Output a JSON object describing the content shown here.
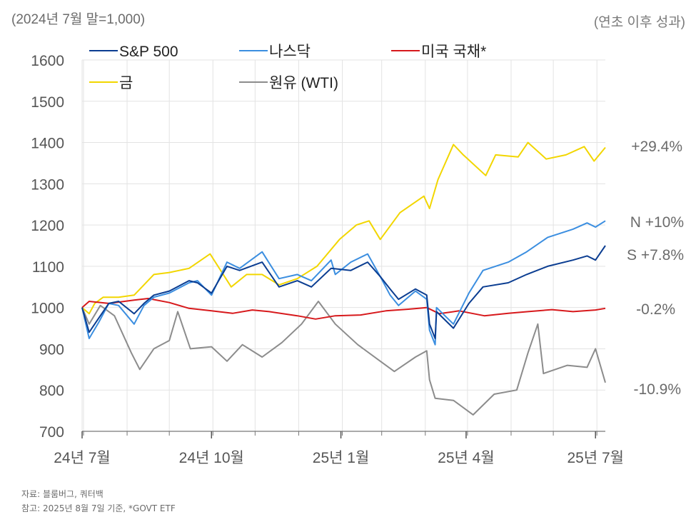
{
  "header": {
    "left_unit": "(2024년 7월 말=1,000)",
    "right_unit": "(연초 이후 성과)"
  },
  "chart_data": {
    "type": "line",
    "ylim": [
      700,
      1600
    ],
    "yticks": [
      700,
      800,
      900,
      1000,
      1100,
      1200,
      1300,
      1400,
      1500,
      1600
    ],
    "xticks": [
      "24년 7월",
      "24년 10월",
      "25년 1월",
      "25년 4월",
      "25년 7월"
    ],
    "grid": true,
    "legend_position": "top-left",
    "x_start": "2024-07-31",
    "x_end": "2025-08-07",
    "series": [
      {
        "name": "S&P 500",
        "color": "#0b3d91",
        "end_label": "S +7.8%",
        "points": [
          [
            "2024-07-31",
            1000
          ],
          [
            "2024-08-05",
            940
          ],
          [
            "2024-08-12",
            975
          ],
          [
            "2024-08-19",
            1010
          ],
          [
            "2024-08-26",
            1015
          ],
          [
            "2024-09-06",
            985
          ],
          [
            "2024-09-13",
            1010
          ],
          [
            "2024-09-20",
            1030
          ],
          [
            "2024-10-01",
            1040
          ],
          [
            "2024-10-15",
            1065
          ],
          [
            "2024-10-21",
            1060
          ],
          [
            "2024-10-31",
            1035
          ],
          [
            "2024-11-11",
            1100
          ],
          [
            "2024-11-20",
            1090
          ],
          [
            "2024-12-06",
            1110
          ],
          [
            "2024-12-18",
            1050
          ],
          [
            "2024-12-31",
            1065
          ],
          [
            "2025-01-10",
            1050
          ],
          [
            "2025-01-24",
            1095
          ],
          [
            "2025-02-07",
            1090
          ],
          [
            "2025-02-19",
            1110
          ],
          [
            "2025-02-28",
            1075
          ],
          [
            "2025-03-07",
            1045
          ],
          [
            "2025-03-13",
            1020
          ],
          [
            "2025-03-25",
            1045
          ],
          [
            "2025-04-02",
            1030
          ],
          [
            "2025-04-04",
            960
          ],
          [
            "2025-04-08",
            925
          ],
          [
            "2025-04-09",
            990
          ],
          [
            "2025-04-21",
            950
          ],
          [
            "2025-05-02",
            1010
          ],
          [
            "2025-05-12",
            1050
          ],
          [
            "2025-05-30",
            1060
          ],
          [
            "2025-06-12",
            1080
          ],
          [
            "2025-06-27",
            1100
          ],
          [
            "2025-07-15",
            1115
          ],
          [
            "2025-07-25",
            1125
          ],
          [
            "2025-07-31",
            1115
          ],
          [
            "2025-08-07",
            1150
          ]
        ]
      },
      {
        "name": "나스닥",
        "color": "#3b8ee0",
        "end_label": "N +10%",
        "points": [
          [
            "2024-07-31",
            1000
          ],
          [
            "2024-08-05",
            925
          ],
          [
            "2024-08-12",
            965
          ],
          [
            "2024-08-19",
            1010
          ],
          [
            "2024-08-26",
            1005
          ],
          [
            "2024-09-06",
            960
          ],
          [
            "2024-09-13",
            1005
          ],
          [
            "2024-09-20",
            1025
          ],
          [
            "2024-10-01",
            1035
          ],
          [
            "2024-10-15",
            1060
          ],
          [
            "2024-10-21",
            1065
          ],
          [
            "2024-10-31",
            1030
          ],
          [
            "2024-11-11",
            1110
          ],
          [
            "2024-11-20",
            1095
          ],
          [
            "2024-12-06",
            1135
          ],
          [
            "2024-12-18",
            1070
          ],
          [
            "2024-12-31",
            1080
          ],
          [
            "2025-01-10",
            1065
          ],
          [
            "2025-01-24",
            1115
          ],
          [
            "2025-01-27",
            1080
          ],
          [
            "2025-02-07",
            1110
          ],
          [
            "2025-02-19",
            1130
          ],
          [
            "2025-02-28",
            1075
          ],
          [
            "2025-03-07",
            1030
          ],
          [
            "2025-03-13",
            1005
          ],
          [
            "2025-03-25",
            1040
          ],
          [
            "2025-04-02",
            1020
          ],
          [
            "2025-04-04",
            945
          ],
          [
            "2025-04-08",
            910
          ],
          [
            "2025-04-09",
            1000
          ],
          [
            "2025-04-21",
            960
          ],
          [
            "2025-05-02",
            1035
          ],
          [
            "2025-05-12",
            1090
          ],
          [
            "2025-05-30",
            1110
          ],
          [
            "2025-06-12",
            1135
          ],
          [
            "2025-06-27",
            1170
          ],
          [
            "2025-07-15",
            1190
          ],
          [
            "2025-07-25",
            1205
          ],
          [
            "2025-07-31",
            1195
          ],
          [
            "2025-08-07",
            1210
          ]
        ]
      },
      {
        "name": "미국 국채*",
        "color": "#d7191c",
        "end_label": "-0.2%",
        "points": [
          [
            "2024-07-31",
            1000
          ],
          [
            "2024-08-05",
            1015
          ],
          [
            "2024-08-19",
            1010
          ],
          [
            "2024-09-06",
            1018
          ],
          [
            "2024-09-16",
            1022
          ],
          [
            "2024-10-01",
            1012
          ],
          [
            "2024-10-15",
            998
          ],
          [
            "2024-10-31",
            992
          ],
          [
            "2024-11-15",
            986
          ],
          [
            "2024-11-29",
            994
          ],
          [
            "2024-12-11",
            990
          ],
          [
            "2024-12-31",
            980
          ],
          [
            "2025-01-13",
            972
          ],
          [
            "2025-01-27",
            980
          ],
          [
            "2025-02-14",
            982
          ],
          [
            "2025-03-04",
            992
          ],
          [
            "2025-03-20",
            996
          ],
          [
            "2025-04-02",
            1000
          ],
          [
            "2025-04-11",
            985
          ],
          [
            "2025-04-25",
            992
          ],
          [
            "2025-05-13",
            980
          ],
          [
            "2025-05-30",
            986
          ],
          [
            "2025-06-13",
            990
          ],
          [
            "2025-06-30",
            995
          ],
          [
            "2025-07-15",
            990
          ],
          [
            "2025-07-31",
            994
          ],
          [
            "2025-08-07",
            998
          ]
        ]
      },
      {
        "name": "금",
        "color": "#f2d600",
        "end_label": "+29.4%",
        "points": [
          [
            "2024-07-31",
            1000
          ],
          [
            "2024-08-05",
            985
          ],
          [
            "2024-08-09",
            1010
          ],
          [
            "2024-08-15",
            1025
          ],
          [
            "2024-08-26",
            1025
          ],
          [
            "2024-09-06",
            1030
          ],
          [
            "2024-09-20",
            1080
          ],
          [
            "2024-10-01",
            1085
          ],
          [
            "2024-10-15",
            1095
          ],
          [
            "2024-10-30",
            1130
          ],
          [
            "2024-11-14",
            1050
          ],
          [
            "2024-11-25",
            1080
          ],
          [
            "2024-12-06",
            1080
          ],
          [
            "2024-12-18",
            1055
          ],
          [
            "2024-12-31",
            1070
          ],
          [
            "2025-01-14",
            1100
          ],
          [
            "2025-01-30",
            1165
          ],
          [
            "2025-02-11",
            1200
          ],
          [
            "2025-02-20",
            1210
          ],
          [
            "2025-02-28",
            1165
          ],
          [
            "2025-03-14",
            1230
          ],
          [
            "2025-03-31",
            1270
          ],
          [
            "2025-04-04",
            1240
          ],
          [
            "2025-04-10",
            1310
          ],
          [
            "2025-04-21",
            1395
          ],
          [
            "2025-04-28",
            1370
          ],
          [
            "2025-05-14",
            1320
          ],
          [
            "2025-05-21",
            1370
          ],
          [
            "2025-06-06",
            1365
          ],
          [
            "2025-06-13",
            1400
          ],
          [
            "2025-06-26",
            1360
          ],
          [
            "2025-07-10",
            1370
          ],
          [
            "2025-07-23",
            1390
          ],
          [
            "2025-07-30",
            1355
          ],
          [
            "2025-08-07",
            1388
          ]
        ]
      },
      {
        "name": "원유 (WTI)",
        "color": "#8c8c8c",
        "end_label": "-10.9%",
        "points": [
          [
            "2024-07-31",
            1000
          ],
          [
            "2024-08-05",
            960
          ],
          [
            "2024-08-13",
            1005
          ],
          [
            "2024-08-23",
            980
          ],
          [
            "2024-09-04",
            890
          ],
          [
            "2024-09-10",
            850
          ],
          [
            "2024-09-20",
            900
          ],
          [
            "2024-10-01",
            920
          ],
          [
            "2024-10-07",
            990
          ],
          [
            "2024-10-16",
            900
          ],
          [
            "2024-10-31",
            905
          ],
          [
            "2024-11-11",
            870
          ],
          [
            "2024-11-22",
            910
          ],
          [
            "2024-12-06",
            880
          ],
          [
            "2024-12-20",
            915
          ],
          [
            "2025-01-03",
            960
          ],
          [
            "2025-01-15",
            1015
          ],
          [
            "2025-01-27",
            960
          ],
          [
            "2025-02-12",
            910
          ],
          [
            "2025-02-28",
            870
          ],
          [
            "2025-03-10",
            845
          ],
          [
            "2025-03-25",
            880
          ],
          [
            "2025-04-02",
            895
          ],
          [
            "2025-04-04",
            825
          ],
          [
            "2025-04-08",
            780
          ],
          [
            "2025-04-21",
            775
          ],
          [
            "2025-05-05",
            740
          ],
          [
            "2025-05-20",
            790
          ],
          [
            "2025-06-05",
            800
          ],
          [
            "2025-06-13",
            890
          ],
          [
            "2025-06-20",
            960
          ],
          [
            "2025-06-24",
            840
          ],
          [
            "2025-07-11",
            860
          ],
          [
            "2025-07-25",
            855
          ],
          [
            "2025-07-31",
            900
          ],
          [
            "2025-08-07",
            818
          ]
        ]
      }
    ]
  },
  "footer": {
    "source": "자료: 블룸버그, 쿼터백",
    "note": "참고: 2025년 8월 7일 기준, *GOVT ETF"
  }
}
